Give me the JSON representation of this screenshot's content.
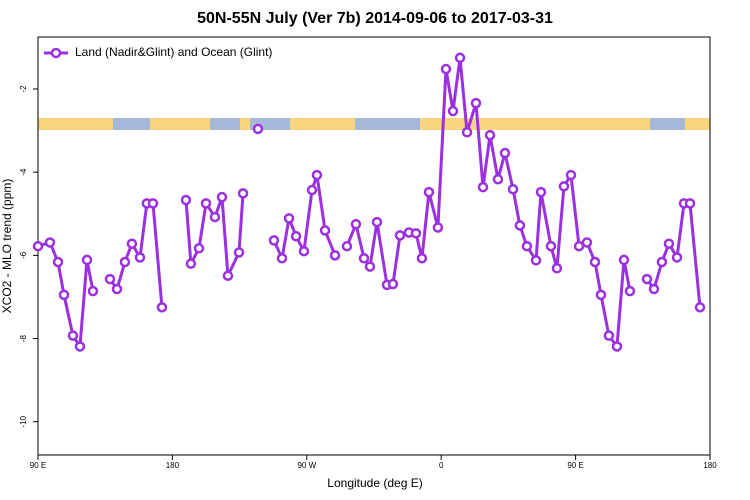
{
  "chart_data": {
    "type": "line",
    "title": "50N-55N July (Ver 7b)   2014-09-06 to 2017-03-31",
    "x_label": "Longitude (deg E)",
    "y_label": "XCO2 - MLO trend (ppm)",
    "xlim": [
      90,
      540
    ],
    "xticks": [
      {
        "value": 90,
        "label": "90 E"
      },
      {
        "value": 180,
        "label": "180"
      },
      {
        "value": 270,
        "label": "90 W"
      },
      {
        "value": 360,
        "label": "0"
      },
      {
        "value": 450,
        "label": "90 E"
      },
      {
        "value": 540,
        "label": "180"
      }
    ],
    "ylim": [
      -10.8,
      -0.75
    ],
    "yticks": [
      -10,
      -8,
      -6,
      -4,
      -2
    ],
    "legend": "top-left",
    "x": [
      90,
      98.0,
      103.4,
      107.4,
      113.4,
      118.1,
      122.8,
      126.8,
      132,
      138.2,
      142.9,
      148.2,
      152.9,
      158.3,
      162.9,
      167.0,
      173.0,
      180,
      189.1,
      192.4,
      197.8,
      202.5,
      208.5,
      213.2,
      217.2,
      224.6,
      227.3,
      232,
      237.3,
      242,
      248.0,
      253.4,
      258.1,
      262.8,
      268.1,
      273.5,
      276.8,
      282.2,
      288.9,
      293,
      296.9,
      302.9,
      308.3,
      312.3,
      317.0,
      323.7,
      327.7,
      332.4,
      338.4,
      343.1,
      347.1,
      351.8,
      357.8,
      363.2,
      367.9,
      372.6,
      377.3,
      383.3,
      388.0,
      392.7,
      398.0,
      402.7,
      408.1,
      412.7,
      417.4,
      423.5,
      426.8,
      433.5,
      437.5,
      442.2,
      446.9,
      452.3,
      457.6,
      463.0,
      467.0,
      472.3,
      477.7,
      482.4,
      486.4,
      492,
      497.8,
      502.5,
      507.8,
      512.5,
      517.9,
      522.6,
      526.6,
      533.3
    ],
    "series": [
      {
        "name": "Land (Nadir&Glint) and Ocean (Glint)",
        "color": "#9b30e0",
        "values": [
          -5.78,
          -5.69,
          -6.16,
          -6.95,
          -7.93,
          -8.19,
          -6.11,
          -6.86,
          null,
          -6.57,
          -6.81,
          -6.16,
          -5.72,
          -6.05,
          -4.75,
          -4.75,
          -7.25,
          null,
          -4.67,
          -6.2,
          -5.83,
          -4.75,
          -5.08,
          -4.6,
          -6.49,
          -5.93,
          -4.51,
          null,
          -2.96,
          null,
          -5.64,
          -6.07,
          -5.11,
          -5.54,
          -5.9,
          -4.43,
          -4.07,
          -5.4,
          -6.0,
          null,
          -5.78,
          -5.25,
          -6.07,
          -6.27,
          -5.2,
          -6.71,
          -6.69,
          -5.52,
          -5.45,
          -5.47,
          -6.07,
          -4.48,
          -5.33,
          -1.52,
          -2.53,
          -1.25,
          -3.04,
          -2.34,
          -4.36,
          -3.11,
          -4.17,
          -3.54,
          -4.41,
          -5.28,
          -5.78,
          -6.12,
          -4.48,
          -5.78,
          -6.31,
          -4.34,
          -4.07,
          -5.78,
          -5.69,
          -6.16,
          -6.95,
          -7.93,
          -8.19,
          -6.11,
          -6.86,
          null,
          -6.57,
          -6.81,
          -6.16,
          -5.72,
          -6.05,
          -4.75,
          -4.75,
          -7.25
        ]
      }
    ]
  }
}
